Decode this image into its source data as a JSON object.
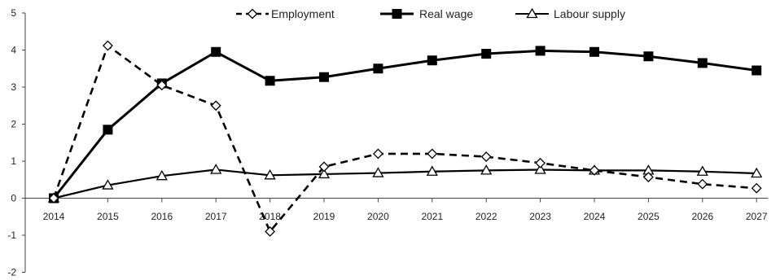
{
  "chart_data": {
    "type": "line",
    "title": "",
    "xlabel": "",
    "ylabel": "",
    "ylim": [
      -2,
      5
    ],
    "yticks": [
      -2,
      -1,
      0,
      1,
      2,
      3,
      4,
      5
    ],
    "categories": [
      "2014",
      "2015",
      "2016",
      "2017",
      "2018",
      "2019",
      "2020",
      "2021",
      "2022",
      "2023",
      "2024",
      "2025",
      "2026",
      "2027"
    ],
    "grid": false,
    "legend_position": "top",
    "series": [
      {
        "name": "Employment",
        "style": "dashed",
        "marker": "diamond-open",
        "color": "#000000",
        "values": [
          0,
          4.12,
          3.05,
          2.5,
          -0.9,
          0.85,
          1.2,
          1.2,
          1.12,
          0.95,
          0.75,
          0.57,
          0.38,
          0.27
        ]
      },
      {
        "name": "Real wage",
        "style": "solid",
        "marker": "square-filled",
        "color": "#000000",
        "values": [
          0,
          1.85,
          3.1,
          3.95,
          3.17,
          3.27,
          3.5,
          3.72,
          3.9,
          3.98,
          3.95,
          3.83,
          3.65,
          3.45
        ]
      },
      {
        "name": "Labour supply",
        "style": "solid",
        "marker": "triangle-open",
        "color": "#000000",
        "values": [
          0,
          0.35,
          0.6,
          0.77,
          0.62,
          0.65,
          0.68,
          0.72,
          0.75,
          0.77,
          0.75,
          0.75,
          0.72,
          0.67
        ]
      }
    ]
  }
}
